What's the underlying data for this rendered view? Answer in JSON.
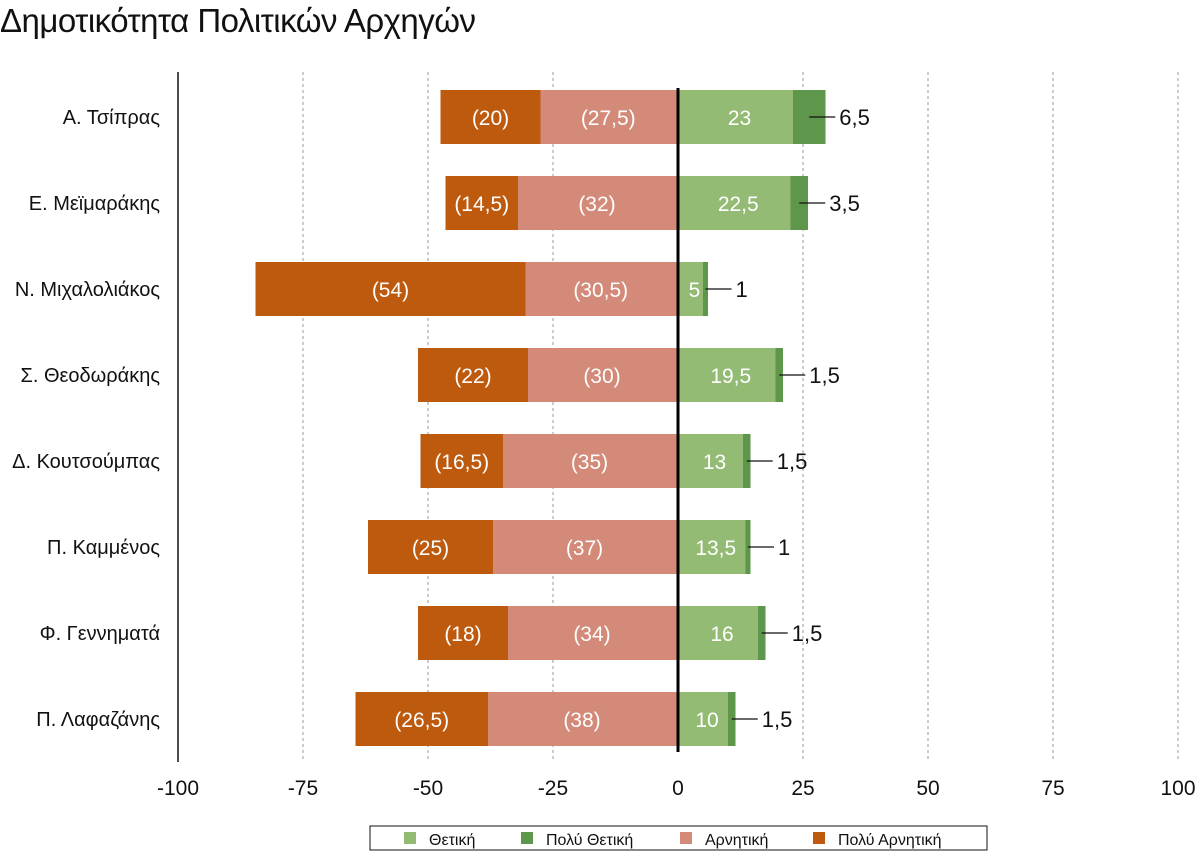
{
  "chart_data": {
    "type": "bar",
    "orientation": "horizontal",
    "stacked": "diverging",
    "title": "Δημοτικότητα Πολιτικών Αρχηγών",
    "categories": [
      "Α. Τσίπρας",
      "Ε. Μεϊμαράκης",
      "Ν. Μιχαλολιάκος",
      "Σ. Θεοδωράκης",
      "Δ. Κουτσούμπας",
      "Π. Καμμένος",
      "Φ. Γεννηματά",
      "Π. Λαφαζάνης"
    ],
    "series": [
      {
        "name": "Θετική",
        "color": "#93bb74",
        "values": [
          23,
          22.5,
          5,
          19.5,
          13,
          13.5,
          16,
          10
        ],
        "labels": [
          "23",
          "22,5",
          "5",
          "19,5",
          "13",
          "13,5",
          "16",
          "10"
        ]
      },
      {
        "name": "Πολύ Θετική",
        "color": "#5e964b",
        "values": [
          6.5,
          3.5,
          1,
          1.5,
          1.5,
          1,
          1.5,
          1.5
        ],
        "labels": [
          "6,5",
          "3,5",
          "1",
          "1,5",
          "1,5",
          "1",
          "1,5",
          "1,5"
        ]
      },
      {
        "name": "Αρνητική",
        "color": "#d48a78",
        "values": [
          -27.5,
          -32,
          -30.5,
          -30,
          -35,
          -37,
          -34,
          -38
        ],
        "labels": [
          "(27,5)",
          "(32)",
          "(30,5)",
          "(30)",
          "(35)",
          "(37)",
          "(34)",
          "(38)"
        ]
      },
      {
        "name": "Πολύ Αρνητική",
        "color": "#bd5a0d",
        "values": [
          -20,
          -14.5,
          -54,
          -22,
          -16.5,
          -25,
          -18,
          -26.5
        ],
        "labels": [
          "(20)",
          "(14,5)",
          "(54)",
          "(22)",
          "(16,5)",
          "(25)",
          "(18)",
          "(26,5)"
        ]
      }
    ],
    "xlim": [
      -100,
      100
    ],
    "xticks": [
      "-100",
      "-75",
      "-50",
      "-25",
      "0",
      "25",
      "50",
      "75",
      "100"
    ],
    "grid": "vertical dashed",
    "legend": "bottom"
  }
}
